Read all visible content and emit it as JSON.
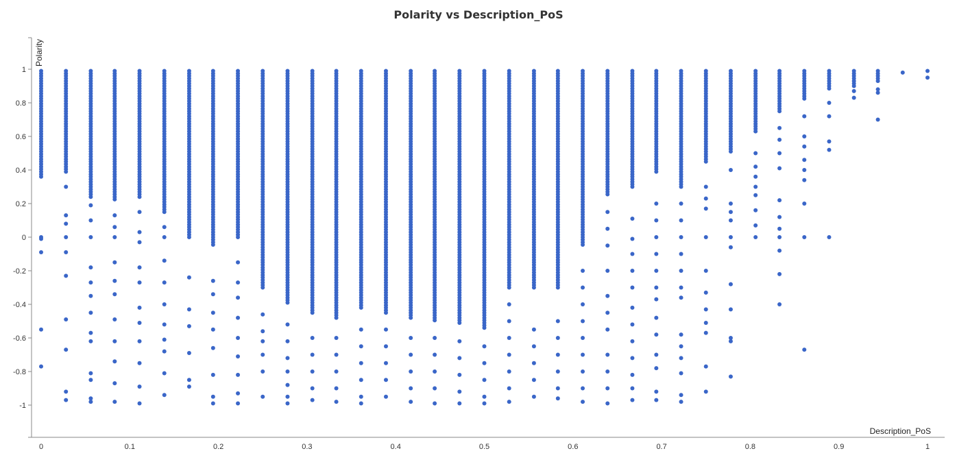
{
  "chart_data": {
    "type": "scatter",
    "title": "Polarity vs Description_PoS",
    "xlabel": "Description_PoS",
    "ylabel": "Polarity",
    "xlim": [
      -0.01,
      1.02
    ],
    "ylim": [
      -1.2,
      1.2
    ],
    "x_ticks": [
      "0",
      "0.1",
      "0.2",
      "0.3",
      "0.4",
      "0.5",
      "0.6",
      "0.7",
      "0.8",
      "0.9",
      "1"
    ],
    "y_ticks": [
      "1",
      "0.8",
      "0.6",
      "0.4",
      "0.2",
      "0",
      "-0.2",
      "-0.4",
      "-0.6",
      "-0.8",
      "-1"
    ],
    "grid": false,
    "marker_color": "#3a66c8",
    "series": [
      {
        "columns": [
          {
            "x": 0.0,
            "dense": [
              0.36,
              0.99
            ],
            "extra": [
              0,
              -0.01,
              -0.09,
              -0.55,
              -0.77
            ]
          },
          {
            "x": 0.028,
            "dense": [
              0.38,
              0.99
            ],
            "extra": [
              0.3,
              0.13,
              0.08,
              0,
              -0.09,
              -0.23,
              -0.49,
              -0.67,
              -0.92,
              -0.97
            ]
          },
          {
            "x": 0.056,
            "dense": [
              0.24,
              0.99
            ],
            "extra": [
              0.19,
              0.1,
              0,
              -0.18,
              -0.27,
              -0.35,
              -0.45,
              -0.57,
              -0.62,
              -0.81,
              -0.85,
              -0.96,
              -0.98
            ]
          },
          {
            "x": 0.083,
            "dense": [
              0.22,
              0.99
            ],
            "extra": [
              0.13,
              0.06,
              0,
              -0.15,
              -0.26,
              -0.34,
              -0.49,
              -0.62,
              -0.74,
              -0.87,
              -0.98
            ]
          },
          {
            "x": 0.111,
            "dense": [
              0.23,
              0.99
            ],
            "extra": [
              0.15,
              0.03,
              -0.03,
              -0.18,
              -0.27,
              -0.42,
              -0.51,
              -0.62,
              -0.75,
              -0.89,
              -0.99
            ]
          },
          {
            "x": 0.139,
            "dense": [
              0.15,
              0.99
            ],
            "extra": [
              0.06,
              0,
              -0.14,
              -0.27,
              -0.4,
              -0.52,
              -0.61,
              -0.68,
              -0.81,
              -0.94
            ]
          },
          {
            "x": 0.167,
            "dense": [
              0.0,
              0.99
            ],
            "extra": [
              -0.24,
              -0.43,
              -0.53,
              -0.69,
              -0.85,
              -0.89
            ]
          },
          {
            "x": 0.194,
            "dense": [
              -0.05,
              0.99
            ],
            "extra": [
              -0.26,
              -0.34,
              -0.45,
              -0.55,
              -0.66,
              -0.82,
              -0.95,
              -0.99
            ]
          },
          {
            "x": 0.222,
            "dense": [
              0.0,
              0.99
            ],
            "extra": [
              -0.15,
              -0.27,
              -0.36,
              -0.48,
              -0.6,
              -0.71,
              -0.82,
              -0.93,
              -0.99
            ]
          },
          {
            "x": 0.25,
            "dense": [
              -0.3,
              0.99
            ],
            "extra": [
              -0.46,
              -0.56,
              -0.62,
              -0.7,
              -0.8,
              -0.95
            ]
          },
          {
            "x": 0.278,
            "dense": [
              -0.4,
              0.99
            ],
            "extra": [
              -0.52,
              -0.62,
              -0.72,
              -0.8,
              -0.88,
              -0.95,
              -0.99
            ]
          },
          {
            "x": 0.306,
            "dense": [
              -0.45,
              0.99
            ],
            "extra": [
              -0.6,
              -0.7,
              -0.8,
              -0.9,
              -0.97
            ]
          },
          {
            "x": 0.333,
            "dense": [
              -0.48,
              0.99
            ],
            "extra": [
              -0.6,
              -0.7,
              -0.8,
              -0.9,
              -0.98
            ]
          },
          {
            "x": 0.361,
            "dense": [
              -0.42,
              0.99
            ],
            "extra": [
              -0.55,
              -0.65,
              -0.75,
              -0.85,
              -0.95,
              -0.99
            ]
          },
          {
            "x": 0.389,
            "dense": [
              -0.45,
              0.99
            ],
            "extra": [
              -0.55,
              -0.65,
              -0.75,
              -0.85,
              -0.95
            ]
          },
          {
            "x": 0.417,
            "dense": [
              -0.48,
              0.99
            ],
            "extra": [
              -0.6,
              -0.7,
              -0.8,
              -0.9,
              -0.98
            ]
          },
          {
            "x": 0.444,
            "dense": [
              -0.5,
              0.99
            ],
            "extra": [
              -0.6,
              -0.7,
              -0.8,
              -0.9,
              -0.99
            ]
          },
          {
            "x": 0.472,
            "dense": [
              -0.52,
              0.99
            ],
            "extra": [
              -0.62,
              -0.72,
              -0.82,
              -0.92,
              -0.99
            ]
          },
          {
            "x": 0.5,
            "dense": [
              -0.55,
              0.99
            ],
            "extra": [
              -0.65,
              -0.75,
              -0.85,
              -0.95,
              -0.99
            ]
          },
          {
            "x": 0.528,
            "dense": [
              -0.3,
              0.99
            ],
            "extra": [
              -0.4,
              -0.5,
              -0.6,
              -0.7,
              -0.8,
              -0.9,
              -0.98
            ]
          },
          {
            "x": 0.556,
            "dense": [
              -0.3,
              0.99
            ],
            "extra": [
              -0.55,
              -0.65,
              -0.75,
              -0.85,
              -0.95
            ]
          },
          {
            "x": 0.583,
            "dense": [
              -0.3,
              0.99
            ],
            "extra": [
              -0.5,
              -0.6,
              -0.7,
              -0.8,
              -0.9,
              -0.96
            ]
          },
          {
            "x": 0.611,
            "dense": [
              -0.05,
              0.99
            ],
            "extra": [
              -0.2,
              -0.3,
              -0.4,
              -0.5,
              -0.6,
              -0.7,
              -0.8,
              -0.9,
              -0.98
            ]
          },
          {
            "x": 0.639,
            "dense": [
              0.25,
              0.99
            ],
            "extra": [
              0.15,
              0.05,
              -0.05,
              -0.2,
              -0.35,
              -0.45,
              -0.55,
              -0.7,
              -0.8,
              -0.9,
              -0.99
            ]
          },
          {
            "x": 0.667,
            "dense": [
              0.3,
              0.99
            ],
            "extra": [
              0.11,
              -0.01,
              -0.1,
              -0.2,
              -0.3,
              -0.42,
              -0.52,
              -0.62,
              -0.72,
              -0.82,
              -0.9,
              -0.97
            ]
          },
          {
            "x": 0.694,
            "dense": [
              0.38,
              0.99
            ],
            "extra": [
              0.2,
              0.1,
              0,
              -0.1,
              -0.2,
              -0.3,
              -0.37,
              -0.48,
              -0.58,
              -0.7,
              -0.78,
              -0.92,
              -0.97
            ]
          },
          {
            "x": 0.722,
            "dense": [
              0.3,
              0.99
            ],
            "extra": [
              0.2,
              0.1,
              0,
              -0.1,
              -0.2,
              -0.3,
              -0.36,
              -0.58,
              -0.65,
              -0.72,
              -0.81,
              -0.94,
              -0.98
            ]
          },
          {
            "x": 0.75,
            "dense": [
              0.45,
              0.99
            ],
            "extra": [
              0.3,
              0.23,
              0.17,
              0,
              -0.2,
              -0.33,
              -0.43,
              -0.51,
              -0.57,
              -0.77,
              -0.92
            ]
          },
          {
            "x": 0.778,
            "dense": [
              0.5,
              0.99
            ],
            "extra": [
              0.4,
              0.2,
              0.15,
              0.1,
              0,
              -0.06,
              -0.28,
              -0.43,
              -0.6,
              -0.62,
              -0.83
            ]
          },
          {
            "x": 0.806,
            "dense": [
              0.62,
              0.99
            ],
            "extra": [
              0.5,
              0.42,
              0.36,
              0.3,
              0.25,
              0.16,
              0.07,
              0
            ]
          },
          {
            "x": 0.833,
            "dense": [
              0.75,
              0.99
            ],
            "extra": [
              0.65,
              0.58,
              0.5,
              0.41,
              0.22,
              0.12,
              0.05,
              0,
              -0.08,
              -0.22,
              -0.4
            ]
          },
          {
            "x": 0.861,
            "dense": [
              0.82,
              0.99
            ],
            "extra": [
              0.72,
              0.6,
              0.54,
              0.46,
              0.4,
              0.34,
              0.2,
              0,
              -0.67
            ]
          },
          {
            "x": 0.889,
            "dense": [
              0.88,
              0.99
            ],
            "extra": [
              0.8,
              0.72,
              0.57,
              0.52,
              0
            ]
          },
          {
            "x": 0.917,
            "dense": [
              0.9,
              0.99
            ],
            "extra": [
              0.87,
              0.83
            ]
          },
          {
            "x": 0.944,
            "dense": [
              0.92,
              0.99
            ],
            "extra": [
              0.88,
              0.86,
              0.7
            ]
          },
          {
            "x": 0.972,
            "dense": [
              0.98,
              0.98
            ],
            "extra": []
          },
          {
            "x": 1.0,
            "dense": [
              0.98,
              0.99
            ],
            "extra": [
              0.95
            ]
          }
        ]
      }
    ]
  }
}
